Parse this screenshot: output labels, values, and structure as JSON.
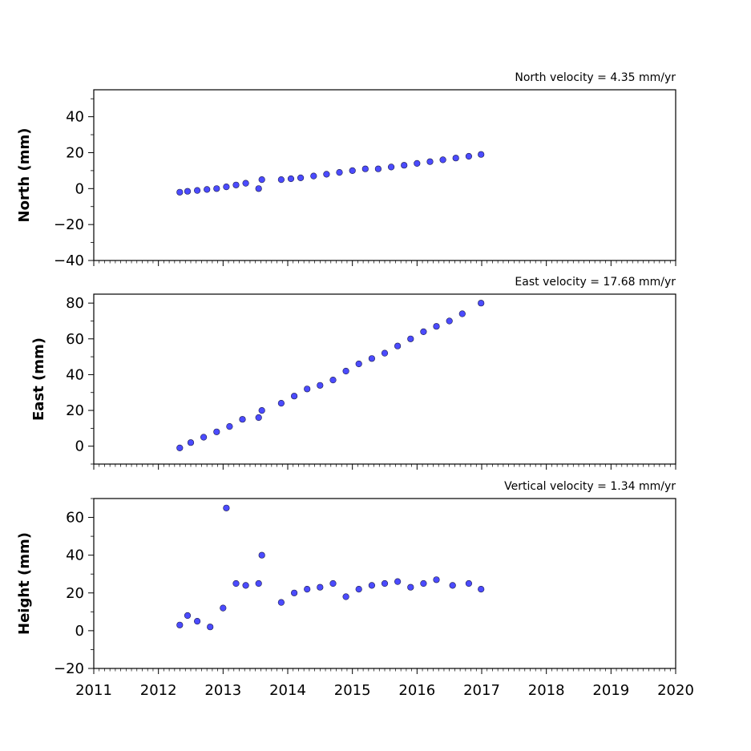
{
  "chart_data": [
    {
      "type": "scatter",
      "panel": "north",
      "title": "North velocity = 4.35 mm/yr",
      "ylabel": "North (mm)",
      "xlim": [
        2011,
        2020
      ],
      "ylim": [
        -40,
        55
      ],
      "yticks": [
        -40,
        -20,
        0,
        20,
        40
      ],
      "ytick_labels": [
        "−40",
        "−20",
        "0",
        "20",
        "40"
      ],
      "marker_color": "#4b4bff",
      "series": [
        {
          "x": [
            2012.33,
            2012.45,
            2012.6,
            2012.75,
            2012.9,
            2013.05,
            2013.2,
            2013.35,
            2013.55,
            2013.6,
            2013.9,
            2014.05,
            2014.2,
            2014.4,
            2014.6,
            2014.8,
            2015.0,
            2015.2,
            2015.4,
            2015.6,
            2015.8,
            2016.0,
            2016.2,
            2016.4,
            2016.6,
            2016.8,
            2016.99
          ],
          "y": [
            -2,
            -1.5,
            -1,
            -0.5,
            0,
            1,
            2,
            3,
            0,
            5,
            5,
            5.5,
            6,
            7,
            8,
            9,
            10,
            11,
            11,
            12,
            13,
            14,
            15,
            16,
            17,
            18,
            19
          ]
        }
      ]
    },
    {
      "type": "scatter",
      "panel": "east",
      "title": "East velocity = 17.68 mm/yr",
      "ylabel": "East (mm)",
      "xlim": [
        2011,
        2020
      ],
      "ylim": [
        -10,
        85
      ],
      "yticks": [
        0,
        20,
        40,
        60,
        80
      ],
      "ytick_labels": [
        "0",
        "20",
        "40",
        "60",
        "80"
      ],
      "marker_color": "#4b4bff",
      "series": [
        {
          "x": [
            2012.33,
            2012.5,
            2012.7,
            2012.9,
            2013.1,
            2013.3,
            2013.55,
            2013.6,
            2013.9,
            2014.1,
            2014.3,
            2014.5,
            2014.7,
            2014.9,
            2015.1,
            2015.3,
            2015.5,
            2015.7,
            2015.9,
            2016.1,
            2016.3,
            2016.5,
            2016.7,
            2016.99
          ],
          "y": [
            -1,
            2,
            5,
            8,
            11,
            15,
            16,
            20,
            24,
            28,
            32,
            34,
            37,
            42,
            46,
            49,
            52,
            56,
            60,
            64,
            67,
            70,
            74,
            80
          ]
        }
      ]
    },
    {
      "type": "scatter",
      "panel": "height",
      "title": "Vertical velocity = 1.34 mm/yr",
      "ylabel": "Height (mm)",
      "xlim": [
        2011,
        2020
      ],
      "ylim": [
        -20,
        70
      ],
      "xticks": [
        2011,
        2012,
        2013,
        2014,
        2015,
        2016,
        2017,
        2018,
        2019,
        2020
      ],
      "xtick_labels": [
        "2011",
        "2012",
        "2013",
        "2014",
        "2015",
        "2016",
        "2017",
        "2018",
        "2019",
        "2020"
      ],
      "yticks": [
        -20,
        0,
        20,
        40,
        60
      ],
      "ytick_labels": [
        "−20",
        "0",
        "20",
        "40",
        "60"
      ],
      "marker_color": "#4b4bff",
      "series": [
        {
          "x": [
            2012.33,
            2012.45,
            2012.6,
            2012.8,
            2013.0,
            2013.05,
            2013.2,
            2013.35,
            2013.55,
            2013.6,
            2013.9,
            2014.1,
            2014.3,
            2014.5,
            2014.7,
            2014.9,
            2015.1,
            2015.3,
            2015.5,
            2015.7,
            2015.9,
            2016.1,
            2016.3,
            2016.55,
            2016.8,
            2016.99
          ],
          "y": [
            3,
            8,
            5,
            2,
            12,
            65,
            25,
            24,
            25,
            40,
            15,
            20,
            22,
            23,
            25,
            18,
            22,
            24,
            25,
            26,
            23,
            25,
            27,
            24,
            25,
            22
          ]
        }
      ]
    }
  ]
}
